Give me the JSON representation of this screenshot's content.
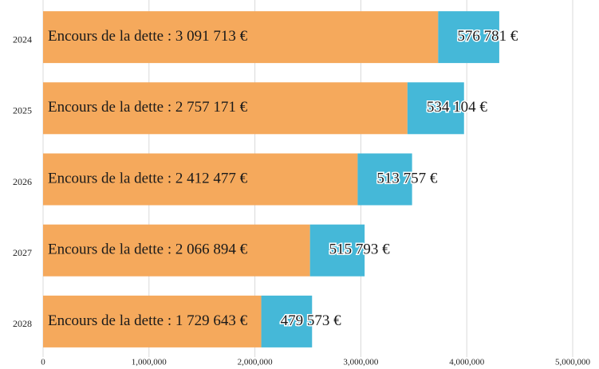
{
  "chart_data": {
    "type": "stacked_barh",
    "categories": [
      "2024",
      "2025",
      "2026",
      "2027",
      "2028"
    ],
    "series": [
      {
        "color": "#f5a95c",
        "values": [
          3730000,
          3440000,
          2970000,
          2520000,
          2060000
        ]
      },
      {
        "color": "#45b8d8",
        "values": [
          576781,
          534104,
          513757,
          515793,
          479573
        ],
        "value_labels": [
          "576 781 €",
          "534 104 €",
          "513 757 €",
          "515 793 €",
          "479 573 €"
        ]
      }
    ],
    "annotations": [
      "Encours de la dette : 3 091 713 €",
      "Encours de la dette : 2 757 171 €",
      "Encours de la dette : 2 412 477 €",
      "Encours de la dette : 2 066 894 €",
      "Encours de la dette : 1 729 643 €"
    ],
    "xlim": [
      0,
      5000000
    ],
    "xticks": [
      0,
      {
        "value": 1000000,
        "label": "1,000,000"
      },
      {
        "value": 2000000,
        "label": "2,000,000"
      },
      {
        "value": 3000000,
        "label": "3,000,000"
      },
      {
        "value": 4000000,
        "label": "4,000,000"
      },
      {
        "value": 5000000,
        "label": "5,000,000"
      }
    ],
    "grid": true
  }
}
